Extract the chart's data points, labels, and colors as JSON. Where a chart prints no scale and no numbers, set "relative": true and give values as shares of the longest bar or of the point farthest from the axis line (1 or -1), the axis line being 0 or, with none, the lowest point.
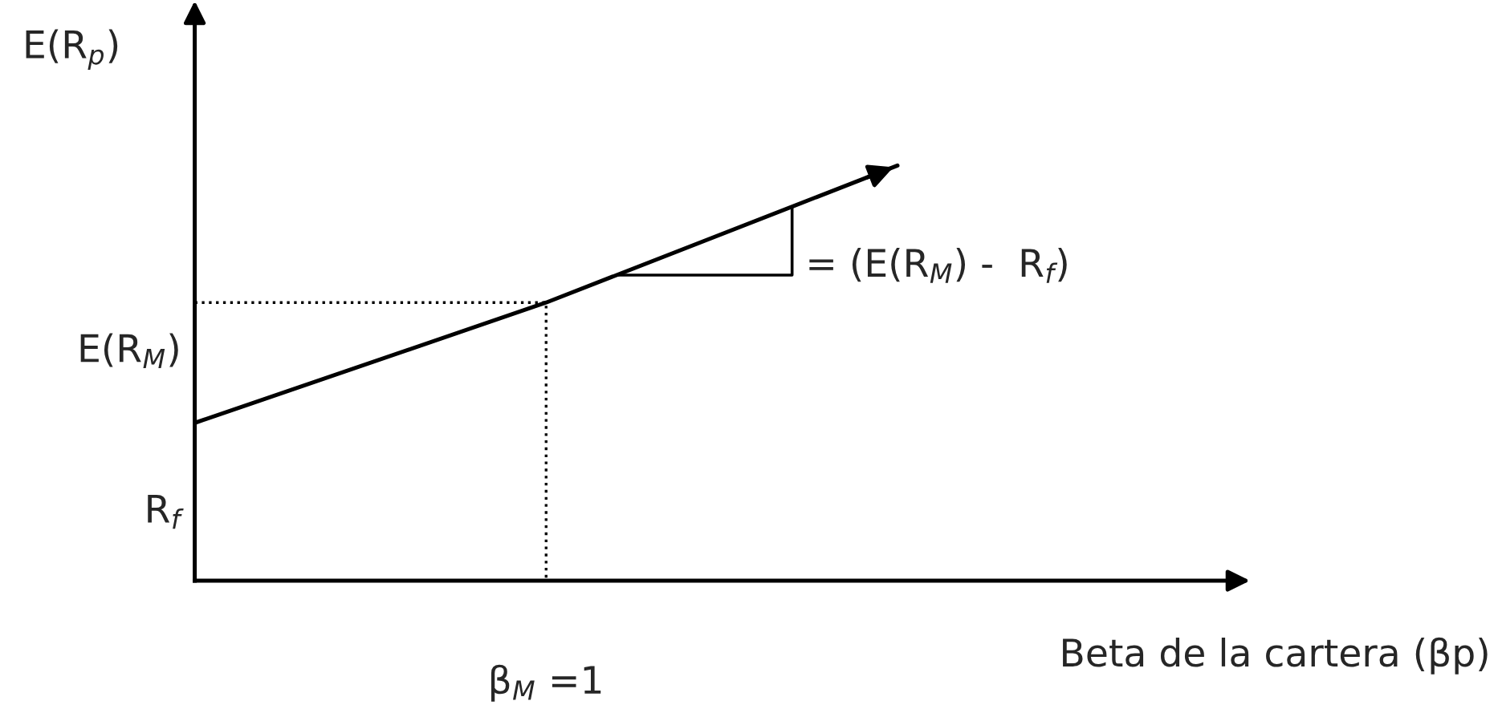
{
  "chart_data": {
    "type": "line",
    "relative": true,
    "ylabel": "E(R$_{p}$)",
    "xlabel": "Beta de la cartera (βp)",
    "categories": [
      null,
      null,
      null
    ],
    "series": [
      {
        "color": "#000000",
        "values": [
          0.38,
          0.67,
          1
        ]
      }
    ],
    "ref_lines": [
      {
        "axis": "y",
        "value": 0.67,
        "line_style": "dotted",
        "color": "#000000"
      }
    ],
    "annotations": [
      "E(R$_{M}$)",
      "R$_{f}$",
      "= (E(R$_{M}$) -  R$_{f}$)",
      "β$_{M}$ =1"
    ]
  }
}
